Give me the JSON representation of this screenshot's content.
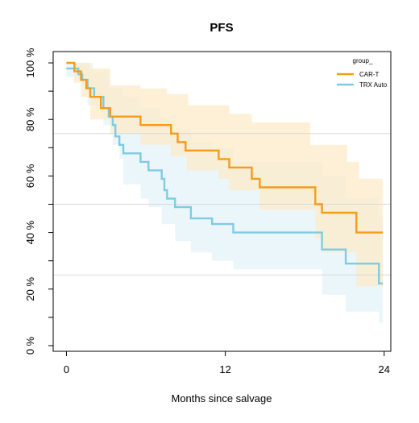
{
  "chart_data": {
    "type": "line",
    "title": "PFS",
    "xlabel": "Months since salvage",
    "ylabel": "",
    "xlim": [
      -1,
      24.5
    ],
    "ylim": [
      -2,
      104
    ],
    "x_ticks": [
      0,
      12,
      24
    ],
    "x_tick_labels": [
      "0",
      "12",
      "24"
    ],
    "y_ticks": [
      0,
      20,
      40,
      60,
      80,
      100
    ],
    "y_tick_labels": [
      "0 %",
      "20 %",
      "40 %",
      "60 %",
      "80 %",
      "100 %"
    ],
    "reference_lines_y": [
      25,
      50,
      75
    ],
    "reference_line_color": "#d9d9d9",
    "legend": {
      "title": "group_",
      "position": "top-right"
    },
    "series": [
      {
        "name": "CAR-T",
        "color": "#f59c1a",
        "band_color": "#fde9c4",
        "steps": [
          [
            0,
            100
          ],
          [
            0.6,
            97
          ],
          [
            1.1,
            94
          ],
          [
            1.5,
            91
          ],
          [
            1.8,
            88
          ],
          [
            2.6,
            84
          ],
          [
            3.3,
            81
          ],
          [
            5.6,
            78
          ],
          [
            7.9,
            75
          ],
          [
            8.4,
            72
          ],
          [
            9,
            69
          ],
          [
            11.5,
            66
          ],
          [
            12.3,
            63
          ],
          [
            14,
            59
          ],
          [
            14.6,
            56
          ],
          [
            18.8,
            50
          ],
          [
            19.3,
            47
          ],
          [
            21.9,
            40
          ],
          [
            23.9,
            40
          ]
        ],
        "ci_upper": [
          [
            0,
            100
          ],
          [
            1.2,
            100
          ],
          [
            1.8,
            98
          ],
          [
            3.3,
            92
          ],
          [
            5.6,
            91
          ],
          [
            7.6,
            89
          ],
          [
            9.2,
            85
          ],
          [
            12.3,
            82
          ],
          [
            14,
            79
          ],
          [
            18.4,
            71
          ],
          [
            21.2,
            65
          ],
          [
            22.1,
            59
          ],
          [
            23.9,
            59
          ]
        ],
        "ci_lower": [
          [
            0,
            100
          ],
          [
            0.6,
            93
          ],
          [
            1.1,
            88
          ],
          [
            1.8,
            80
          ],
          [
            3.3,
            75
          ],
          [
            5.6,
            71
          ],
          [
            7.9,
            67
          ],
          [
            9.1,
            62
          ],
          [
            11.5,
            59
          ],
          [
            12.3,
            55
          ],
          [
            14.6,
            48
          ],
          [
            18.8,
            38
          ],
          [
            19.3,
            33
          ],
          [
            21.9,
            21
          ],
          [
            23.9,
            21
          ]
        ]
      },
      {
        "name": "TRX Auto",
        "color": "#7ecbe3",
        "band_color": "#e2f2fa",
        "steps": [
          [
            0,
            98
          ],
          [
            0.9,
            96
          ],
          [
            1.2,
            94
          ],
          [
            1.6,
            91
          ],
          [
            2.1,
            88
          ],
          [
            2.8,
            84
          ],
          [
            3.2,
            81
          ],
          [
            3.5,
            78
          ],
          [
            3.7,
            74
          ],
          [
            4,
            71
          ],
          [
            4.3,
            68
          ],
          [
            5.6,
            65
          ],
          [
            6.2,
            62
          ],
          [
            7.2,
            59
          ],
          [
            7.4,
            55
          ],
          [
            7.6,
            52
          ],
          [
            8.2,
            49
          ],
          [
            9.4,
            45
          ],
          [
            11,
            43
          ],
          [
            12.6,
            40
          ],
          [
            19.3,
            34
          ],
          [
            21.1,
            29
          ],
          [
            23.6,
            22
          ],
          [
            23.9,
            22
          ]
        ],
        "ci_upper": [
          [
            0,
            100
          ],
          [
            2,
            97
          ],
          [
            3.2,
            91
          ],
          [
            4.3,
            88
          ],
          [
            5.6,
            84
          ],
          [
            7.1,
            80
          ],
          [
            8.2,
            76
          ],
          [
            9.4,
            72
          ],
          [
            11,
            70
          ],
          [
            12.6,
            65
          ],
          [
            19.3,
            60
          ],
          [
            21.1,
            52
          ],
          [
            23.6,
            46
          ],
          [
            23.9,
            46
          ]
        ],
        "ci_lower": [
          [
            0,
            95
          ],
          [
            1.6,
            85
          ],
          [
            2.8,
            78
          ],
          [
            3.5,
            71
          ],
          [
            4,
            66
          ],
          [
            4.3,
            57
          ],
          [
            5.6,
            52
          ],
          [
            6.2,
            49
          ],
          [
            7.2,
            43
          ],
          [
            8.2,
            37
          ],
          [
            9.4,
            33
          ],
          [
            11,
            30
          ],
          [
            12.6,
            27
          ],
          [
            19.3,
            18
          ],
          [
            21.1,
            12
          ],
          [
            23.6,
            8
          ],
          [
            23.9,
            4
          ]
        ]
      }
    ]
  }
}
